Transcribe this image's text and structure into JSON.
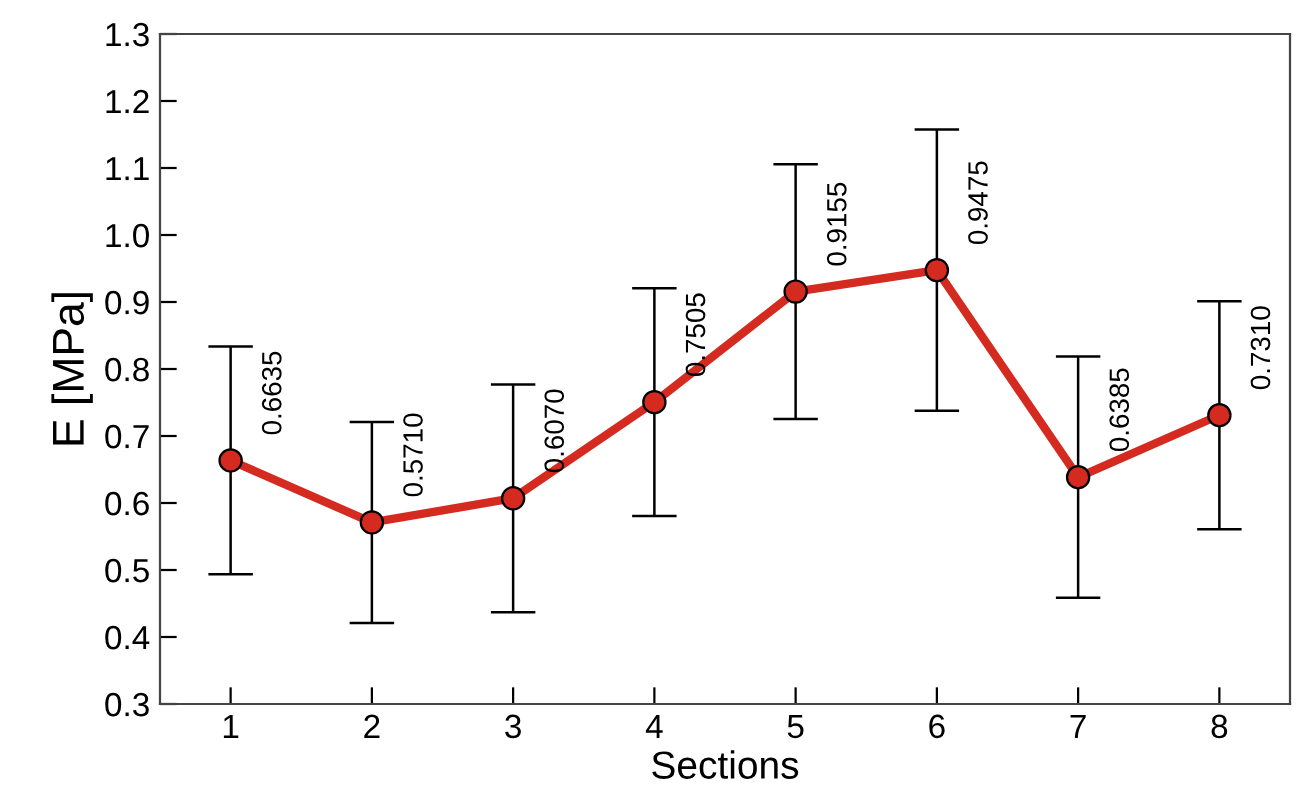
{
  "chart_data": {
    "type": "line",
    "xlabel": "Sections",
    "ylabel": "E [MPa]",
    "categories": [
      "1",
      "2",
      "3",
      "4",
      "5",
      "6",
      "7",
      "8"
    ],
    "series": [
      {
        "color": "#d42a20",
        "values": [
          0.6635,
          0.571,
          0.607,
          0.7505,
          0.9155,
          0.9475,
          0.6385,
          0.731
        ],
        "errors": [
          0.17,
          0.15,
          0.17,
          0.17,
          0.19,
          0.21,
          0.18,
          0.17
        ],
        "value_labels": [
          "0.6635",
          "0.5710",
          "0.6070",
          "0.7505",
          "0.9155",
          "0.9475",
          "0.6385",
          "0.7310"
        ]
      }
    ],
    "ylim": [
      0.3,
      1.3
    ],
    "yticks": [
      0.3,
      0.4,
      0.5,
      0.6,
      0.7,
      0.8,
      0.9,
      {
        "value": 1.0,
        "label": "1.0"
      },
      1.1,
      1.2,
      1.3
    ],
    "marker": "circle",
    "grid": false,
    "legend": false
  }
}
